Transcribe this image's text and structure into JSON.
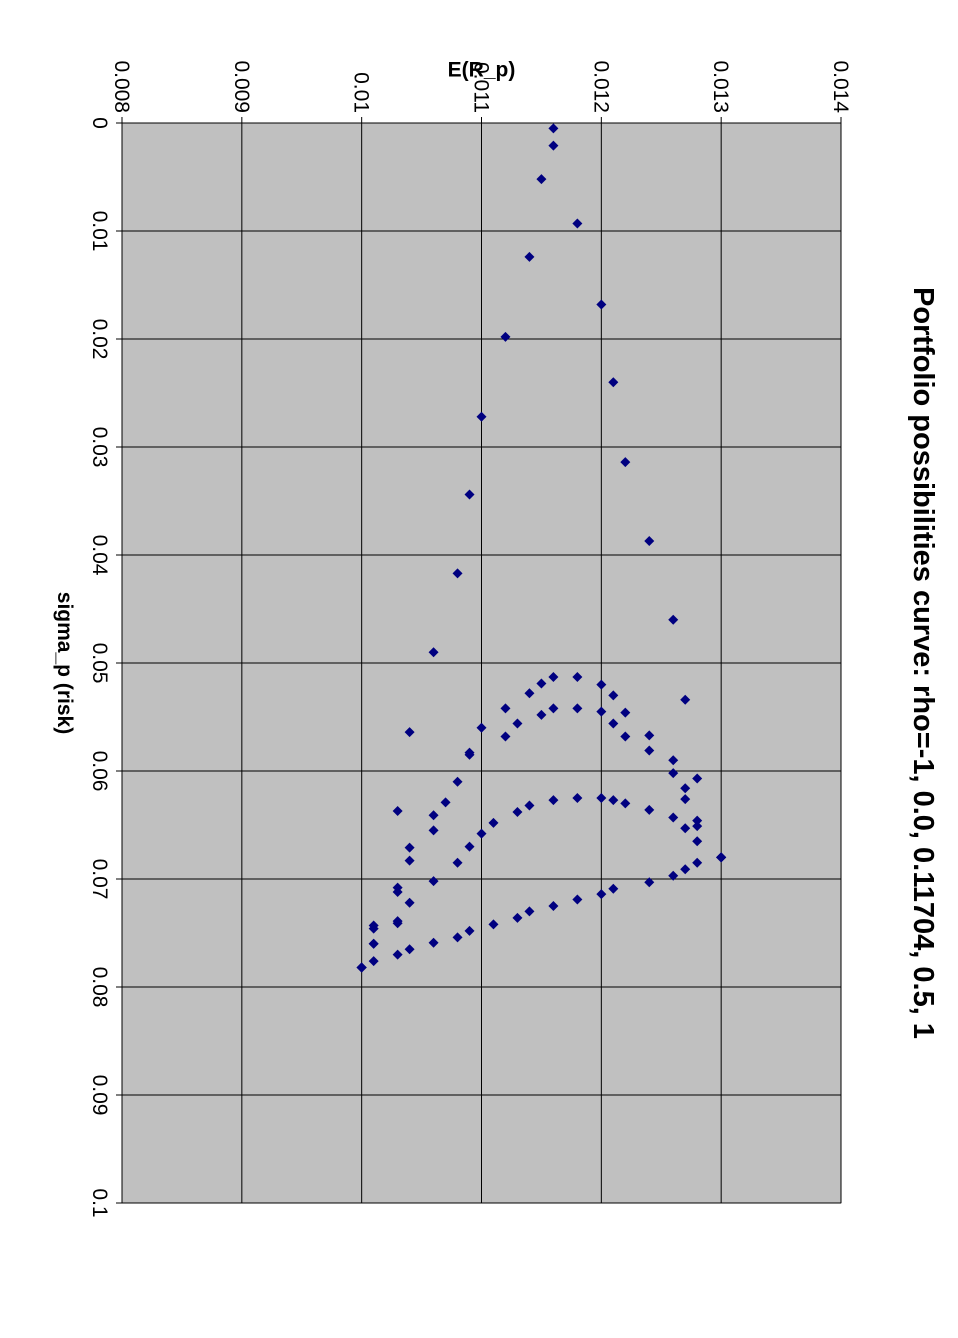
{
  "chart_data": {
    "type": "scatter",
    "title": "Portfolio possibilities curve: rho=-1, 0.0, 0.11704, 0.5, 1",
    "xlabel": "sigma_p (risk)",
    "ylabel": "E(R_p)",
    "xlim": [
      0,
      0.1
    ],
    "ylim": [
      0.008,
      0.014
    ],
    "x_ticks": [
      "0",
      "0.01",
      "0.02",
      "0.03",
      "0.04",
      "0.05",
      "0.06",
      "0.07",
      "0.08",
      "0.09",
      "0.1"
    ],
    "y_ticks": [
      "0.008",
      "0.009",
      "0.01",
      "0.011",
      "0.012",
      "0.013",
      "0.014"
    ],
    "grid": true,
    "legend": "none",
    "orientation": "rotated 90 degrees clockwise on the page",
    "plot_background": "#c0c0c0",
    "marker_color": "#000080",
    "marker": "diamond",
    "series": [
      {
        "points": [
          [
            0.0782,
            0.01
          ],
          [
            0.0722,
            0.0104
          ],
          [
            0.0637,
            0.0103
          ],
          [
            0.0564,
            0.0104
          ],
          [
            0.049,
            0.0106
          ],
          [
            0.0417,
            0.0108
          ],
          [
            0.0344,
            0.0109
          ],
          [
            0.0272,
            0.011
          ],
          [
            0.0198,
            0.0112
          ],
          [
            0.0124,
            0.0114
          ],
          [
            0.0052,
            0.0115
          ],
          [
            0.0021,
            0.0116
          ],
          [
            0.0005,
            0.0116
          ],
          [
            0.0093,
            0.0118
          ],
          [
            0.0168,
            0.012
          ],
          [
            0.024,
            0.0121
          ],
          [
            0.0314,
            0.0122
          ],
          [
            0.0387,
            0.0124
          ],
          [
            0.046,
            0.0126
          ],
          [
            0.0534,
            0.0127
          ],
          [
            0.0607,
            0.0128
          ],
          [
            0.068,
            0.013
          ]
        ]
      },
      {
        "points": [
          [
            0.0782,
            0.01
          ],
          [
            0.076,
            0.0101
          ],
          [
            0.0743,
            0.0101
          ],
          [
            0.0708,
            0.0103
          ],
          [
            0.0683,
            0.0104
          ],
          [
            0.0655,
            0.0106
          ],
          [
            0.0629,
            0.0107
          ],
          [
            0.061,
            0.0108
          ],
          [
            0.0585,
            0.0109
          ],
          [
            0.056,
            0.011
          ],
          [
            0.0542,
            0.0112
          ],
          [
            0.0528,
            0.0114
          ],
          [
            0.0519,
            0.0115
          ],
          [
            0.0513,
            0.0116
          ],
          [
            0.0513,
            0.0118
          ],
          [
            0.052,
            0.012
          ],
          [
            0.053,
            0.0121
          ],
          [
            0.0546,
            0.0122
          ],
          [
            0.0567,
            0.0124
          ],
          [
            0.059,
            0.0126
          ],
          [
            0.0616,
            0.0127
          ],
          [
            0.0646,
            0.0128
          ],
          [
            0.068,
            0.013
          ]
        ]
      },
      {
        "points": [
          [
            0.0782,
            0.01
          ],
          [
            0.076,
            0.0101
          ],
          [
            0.0741,
            0.0103
          ],
          [
            0.0712,
            0.0103
          ],
          [
            0.0671,
            0.0104
          ],
          [
            0.0641,
            0.0106
          ],
          [
            0.0583,
            0.0109
          ],
          [
            0.0568,
            0.0112
          ],
          [
            0.0556,
            0.0113
          ],
          [
            0.0548,
            0.0115
          ],
          [
            0.0542,
            0.0116
          ],
          [
            0.0542,
            0.0118
          ],
          [
            0.0545,
            0.012
          ],
          [
            0.0556,
            0.0121
          ],
          [
            0.0568,
            0.0122
          ],
          [
            0.0581,
            0.0124
          ],
          [
            0.0602,
            0.0126
          ],
          [
            0.0626,
            0.0127
          ],
          [
            0.0651,
            0.0128
          ],
          [
            0.068,
            0.013
          ]
        ]
      },
      {
        "points": [
          [
            0.0782,
            0.01
          ],
          [
            0.0746,
            0.0101
          ],
          [
            0.0739,
            0.0103
          ],
          [
            0.0702,
            0.0106
          ],
          [
            0.0685,
            0.0108
          ],
          [
            0.067,
            0.0109
          ],
          [
            0.0658,
            0.011
          ],
          [
            0.0648,
            0.0111
          ],
          [
            0.0638,
            0.0113
          ],
          [
            0.0632,
            0.0114
          ],
          [
            0.0627,
            0.0116
          ],
          [
            0.0625,
            0.0118
          ],
          [
            0.0625,
            0.012
          ],
          [
            0.0627,
            0.0121
          ],
          [
            0.063,
            0.0122
          ],
          [
            0.0636,
            0.0124
          ],
          [
            0.0643,
            0.0126
          ],
          [
            0.0653,
            0.0127
          ],
          [
            0.0665,
            0.0128
          ],
          [
            0.068,
            0.013
          ]
        ]
      },
      {
        "points": [
          [
            0.0782,
            0.01
          ],
          [
            0.0776,
            0.0101
          ],
          [
            0.077,
            0.0103
          ],
          [
            0.0765,
            0.0104
          ],
          [
            0.0759,
            0.0106
          ],
          [
            0.0754,
            0.0108
          ],
          [
            0.0748,
            0.0109
          ],
          [
            0.0742,
            0.0111
          ],
          [
            0.0736,
            0.0113
          ],
          [
            0.073,
            0.0114
          ],
          [
            0.0725,
            0.0116
          ],
          [
            0.0719,
            0.0118
          ],
          [
            0.0714,
            0.012
          ],
          [
            0.0709,
            0.0121
          ],
          [
            0.0703,
            0.0124
          ],
          [
            0.0697,
            0.0126
          ],
          [
            0.0691,
            0.0127
          ],
          [
            0.0685,
            0.0128
          ],
          [
            0.068,
            0.013
          ]
        ]
      }
    ]
  }
}
